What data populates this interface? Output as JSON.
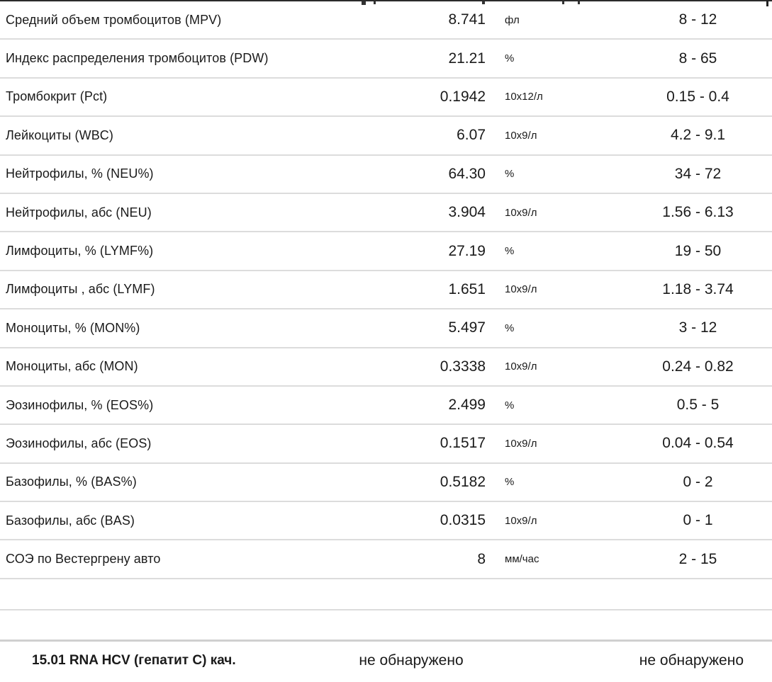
{
  "table": {
    "rows": [
      {
        "name": "Средний объем тромбоцитов (MPV)",
        "value": "8.741",
        "unit": "фл",
        "range": "8 - 12"
      },
      {
        "name": "Индекс распределения тромбоцитов (PDW)",
        "value": "21.21",
        "unit": "%",
        "range": "8 - 65"
      },
      {
        "name": "Тромбокрит (Pct)",
        "value": "0.1942",
        "unit": "10x12/л",
        "range": "0.15 - 0.4"
      },
      {
        "name": "Лейкоциты (WBC)",
        "value": "6.07",
        "unit": "10x9/л",
        "range": "4.2 - 9.1"
      },
      {
        "name": "Нейтрофилы, % (NEU%)",
        "value": "64.30",
        "unit": "%",
        "range": "34 - 72"
      },
      {
        "name": "Нейтрофилы, абс (NEU)",
        "value": "3.904",
        "unit": "10x9/л",
        "range": "1.56 - 6.13"
      },
      {
        "name": "Лимфоциты, % (LYMF%)",
        "value": "27.19",
        "unit": "%",
        "range": "19 - 50"
      },
      {
        "name": "Лимфоциты , абс (LYMF)",
        "value": "1.651",
        "unit": "10x9/л",
        "range": "1.18 - 3.74"
      },
      {
        "name": "Моноциты, % (MON%)",
        "value": "5.497",
        "unit": "%",
        "range": "3 - 12"
      },
      {
        "name": "Моноциты, абс (MON)",
        "value": "0.3338",
        "unit": "10x9/л",
        "range": "0.24 - 0.82"
      },
      {
        "name": "Эозинофилы, % (EOS%)",
        "value": "2.499",
        "unit": "%",
        "range": "0.5 - 5"
      },
      {
        "name": "Эозинофилы, абс (EOS)",
        "value": "0.1517",
        "unit": "10x9/л",
        "range": "0.04 - 0.54"
      },
      {
        "name": "Базофилы, % (BAS%)",
        "value": "0.5182",
        "unit": "%",
        "range": "0 - 2"
      },
      {
        "name": "Базофилы, абс (BAS)",
        "value": "0.0315",
        "unit": "10x9/л",
        "range": "0 - 1"
      },
      {
        "name": "СОЭ по Вестергрену авто",
        "value": "8",
        "unit": "мм/час",
        "range": "2 - 15"
      }
    ]
  },
  "footer": {
    "test_name": "15.01 RNA HCV (гепатит C) кач.",
    "result": "не обнаружено",
    "reference": "не обнаружено"
  }
}
